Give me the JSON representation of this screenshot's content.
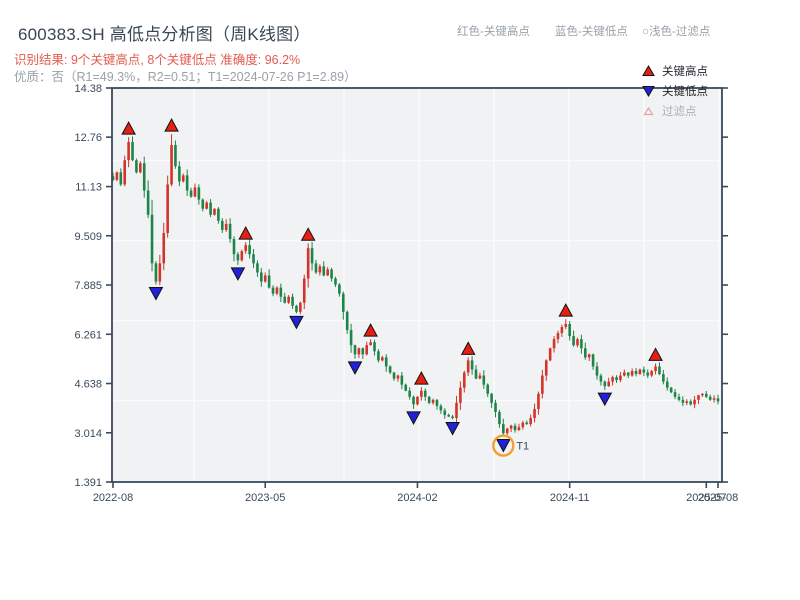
{
  "header": {
    "title": "600383.SH 高低点分析图（周K线图）",
    "color_legend": {
      "high": "红色-关键高点",
      "low": "蓝色-关键低点",
      "filter": "○浅色-过滤点"
    },
    "result_line": "识别结果: 9个关键高点, 8个关键低点  准确度: 96.2%",
    "quality_line": "优质：否（R1=49.3%，R2=0.51；T1=2024-07-26 P1=2.89）"
  },
  "legend": {
    "high": "关键高点",
    "low": "关键低点",
    "filter": "过滤点"
  },
  "colors": {
    "accent_red": "#e25b50",
    "muted_gray": "#9aa1aa",
    "title_text": "#3a4656",
    "axis": "#3a4a5c",
    "plot_bg": "#f1f2f4",
    "grid": "#fafbfc",
    "candle_up": "#d2342a",
    "candle_down": "#1e8449",
    "marker_high": "#e41f13",
    "marker_low": "#2121d8",
    "marker_filter": "#e8a0a0",
    "t1_annotation": "#f0a030"
  },
  "chart_data": {
    "type": "candlestick",
    "symbol": "600383.SH",
    "frequency": "weekly",
    "key_high_count": 9,
    "key_low_count": 8,
    "accuracy": "96.2%",
    "quality": "否",
    "r1": "49.3%",
    "r2": "0.51",
    "p1": "2.89",
    "ylim": [
      1.391,
      14.38
    ],
    "yticks": [
      14.38,
      12.76,
      11.13,
      9.509,
      7.885,
      6.261,
      4.638,
      3.014,
      1.391
    ],
    "xticks": [
      {
        "label": "2022-08",
        "week": 0
      },
      {
        "label": "2023-05",
        "week": 39
      },
      {
        "label": "2024-02",
        "week": 78
      },
      {
        "label": "2024-11",
        "week": 117
      },
      {
        "label": "2025-07",
        "week": 152
      },
      {
        "label": "2025-08",
        "week": 155
      }
    ],
    "weekly_closes": [
      11.35,
      11.6,
      11.2,
      12.0,
      12.6,
      12.0,
      11.6,
      11.9,
      11.0,
      10.2,
      8.6,
      8.0,
      8.6,
      9.6,
      11.2,
      12.5,
      11.8,
      11.3,
      11.5,
      11.0,
      10.8,
      11.1,
      10.7,
      10.4,
      10.6,
      10.2,
      10.4,
      10.0,
      9.7,
      9.9,
      9.4,
      8.9,
      8.7,
      9.0,
      9.2,
      8.9,
      8.6,
      8.3,
      8.0,
      8.2,
      7.8,
      7.6,
      7.8,
      7.5,
      7.3,
      7.5,
      7.2,
      7.0,
      7.3,
      8.1,
      9.1,
      8.6,
      8.3,
      8.5,
      8.2,
      8.4,
      8.1,
      7.9,
      7.6,
      7.0,
      6.4,
      5.9,
      5.6,
      5.8,
      5.6,
      5.9,
      6.0,
      5.7,
      5.4,
      5.5,
      5.2,
      5.0,
      4.8,
      4.9,
      4.6,
      4.4,
      4.2,
      3.95,
      4.2,
      4.4,
      4.2,
      4.0,
      4.1,
      3.9,
      3.75,
      3.6,
      3.55,
      3.5,
      4.0,
      4.5,
      5.0,
      5.4,
      5.1,
      4.8,
      4.9,
      4.6,
      4.3,
      4.0,
      3.7,
      3.3,
      3.0,
      3.15,
      3.25,
      3.1,
      3.2,
      3.35,
      3.3,
      3.5,
      3.8,
      4.3,
      4.9,
      5.4,
      5.8,
      6.1,
      6.3,
      6.5,
      6.6,
      6.2,
      5.9,
      6.1,
      5.8,
      5.5,
      5.6,
      5.2,
      4.9,
      4.7,
      4.55,
      4.7,
      4.85,
      4.75,
      4.9,
      5.0,
      4.9,
      5.05,
      4.95,
      5.1,
      5.0,
      4.9,
      5.05,
      5.2,
      4.95,
      4.7,
      4.5,
      4.35,
      4.2,
      4.1,
      4.0,
      4.05,
      3.95,
      4.1,
      4.25,
      4.3,
      4.2,
      4.1,
      4.15,
      4.05
    ],
    "key_highs": [
      {
        "week": 4,
        "price": 12.76
      },
      {
        "week": 15,
        "price": 12.86
      },
      {
        "week": 34,
        "price": 9.3
      },
      {
        "week": 50,
        "price": 9.26
      },
      {
        "week": 66,
        "price": 6.1
      },
      {
        "week": 79,
        "price": 4.52
      },
      {
        "week": 91,
        "price": 5.5
      },
      {
        "week": 116,
        "price": 6.76
      },
      {
        "week": 139,
        "price": 5.3
      }
    ],
    "key_lows": [
      {
        "week": 11,
        "price": 7.9
      },
      {
        "week": 32,
        "price": 8.55
      },
      {
        "week": 47,
        "price": 6.95
      },
      {
        "week": 62,
        "price": 5.45
      },
      {
        "week": 77,
        "price": 3.8
      },
      {
        "week": 87,
        "price": 3.45
      },
      {
        "week": 100,
        "price": 2.89
      },
      {
        "week": 126,
        "price": 4.42
      }
    ],
    "t1_annotation": {
      "week": 100,
      "price": 2.89,
      "date": "2024-07-26",
      "label": "T1"
    }
  }
}
